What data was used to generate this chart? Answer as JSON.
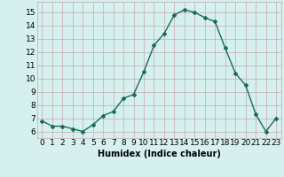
{
  "x": [
    0,
    1,
    2,
    3,
    4,
    5,
    6,
    7,
    8,
    9,
    10,
    11,
    12,
    13,
    14,
    15,
    16,
    17,
    18,
    19,
    20,
    21,
    22,
    23
  ],
  "y": [
    6.8,
    6.4,
    6.4,
    6.2,
    6.0,
    6.5,
    7.2,
    7.5,
    8.5,
    8.8,
    10.5,
    12.5,
    13.4,
    14.8,
    15.2,
    15.0,
    14.6,
    14.3,
    12.3,
    10.4,
    9.5,
    7.3,
    6.0,
    7.0
  ],
  "line_color": "#1a6b5e",
  "marker": "D",
  "marker_size": 2.0,
  "bg_color": "#d6f0f0",
  "grid_color": "#c4aaaa",
  "xlabel": "Humidex (Indice chaleur)",
  "ylim": [
    5.5,
    15.8
  ],
  "xlim": [
    -0.5,
    23.5
  ],
  "yticks": [
    6,
    7,
    8,
    9,
    10,
    11,
    12,
    13,
    14,
    15
  ],
  "xticks": [
    0,
    1,
    2,
    3,
    4,
    5,
    6,
    7,
    8,
    9,
    10,
    11,
    12,
    13,
    14,
    15,
    16,
    17,
    18,
    19,
    20,
    21,
    22,
    23
  ],
  "xlabel_fontsize": 7,
  "tick_fontsize": 6.5,
  "line_width": 1.0
}
